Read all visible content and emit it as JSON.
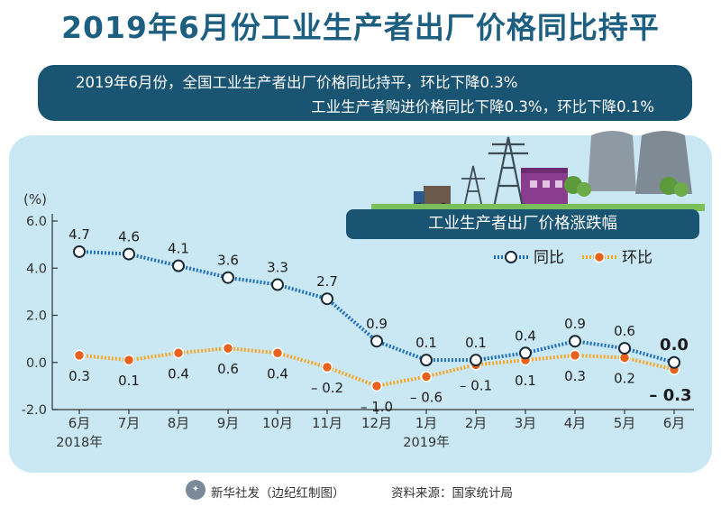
{
  "title": "2019年6月份工业生产者出厂价格同比持平",
  "summary": {
    "line1": "2019年6月份，全国工业生产者出厂价格同比持平，环比下降0.3%",
    "line2": "工业生产者购进价格同比下降0.3%，环比下降0.1%"
  },
  "footer": {
    "agency": "新华社发（边纪红制图）",
    "source": "资料来源：国家统计局"
  },
  "colors": {
    "title": "#1d5f80",
    "dark_band": "#1a5473",
    "panel_bg": "#cae8f4",
    "yoy_line": "#1f6fb8",
    "mom_line": "#f5a623",
    "mom_marker": "#e8621d"
  },
  "chart_data": {
    "type": "line",
    "title": "工业生产者出厂价格涨跌幅",
    "ylabel": "(%)",
    "ylim": [
      -2.0,
      6.0
    ],
    "yticks": [
      "6.0",
      "4.0",
      "2.0",
      "0.0",
      "-2.0"
    ],
    "ytick_values": [
      6.0,
      4.0,
      2.0,
      0.0,
      -2.0
    ],
    "categories": [
      "6月",
      "7月",
      "8月",
      "9月",
      "10月",
      "11月",
      "12月",
      "1月",
      "2月",
      "3月",
      "4月",
      "5月",
      "6月"
    ],
    "year_labels": [
      {
        "index": 0,
        "text": "2018年"
      },
      {
        "index": 7,
        "text": "2019年"
      }
    ],
    "legend_position": "top-right",
    "series": [
      {
        "name": "同比",
        "values": [
          4.7,
          4.6,
          4.1,
          3.6,
          3.3,
          2.7,
          0.9,
          0.1,
          0.1,
          0.4,
          0.9,
          0.6,
          0.0
        ],
        "labels": [
          "4.7",
          "4.6",
          "4.1",
          "3.6",
          "3.3",
          "2.7",
          "0.9",
          "0.1",
          "0.1",
          "0.4",
          "0.9",
          "0.6",
          "0.0"
        ]
      },
      {
        "name": "环比",
        "values": [
          0.3,
          0.1,
          0.4,
          0.6,
          0.4,
          -0.2,
          -1.0,
          -0.6,
          -0.1,
          0.1,
          0.3,
          0.2,
          -0.3
        ],
        "labels": [
          "0.3",
          "0.1",
          "0.4",
          "0.6",
          "0.4",
          "– 0.2",
          "– 1.0",
          "– 0.6",
          "– 0.1",
          "0.1",
          "0.3",
          "0.2",
          "– 0.3"
        ]
      }
    ]
  }
}
